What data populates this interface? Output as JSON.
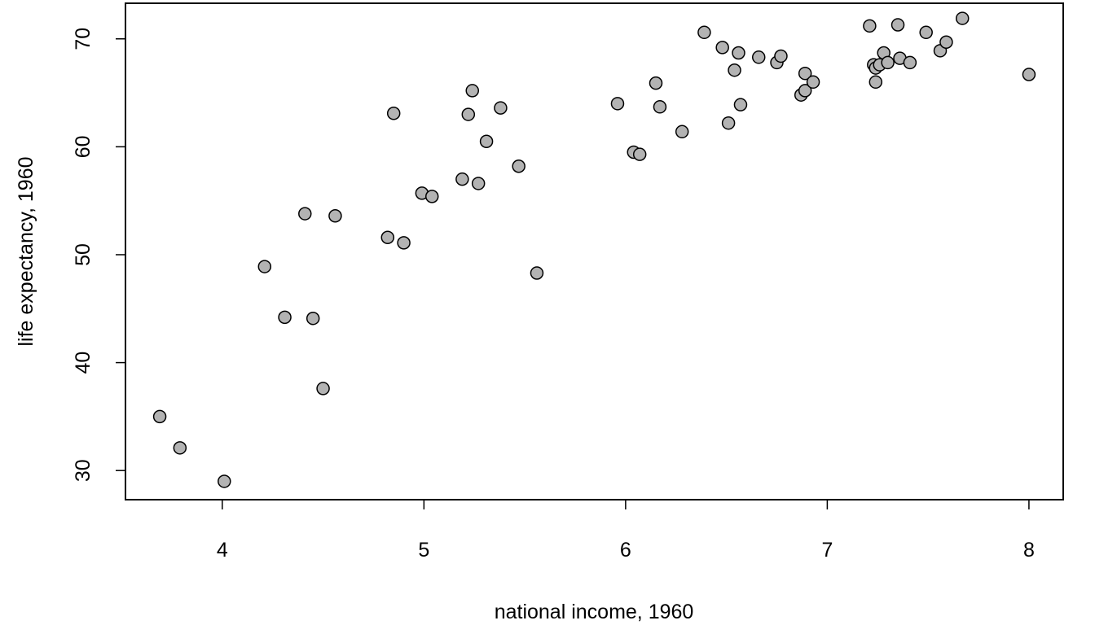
{
  "chart_data": {
    "type": "scatter",
    "title": "",
    "xlabel": "national income, 1960",
    "ylabel": "life expectancy, 1960",
    "xlim": [
      3.52,
      8.17
    ],
    "ylim": [
      27.3,
      73.3
    ],
    "xticks": [
      4,
      5,
      6,
      7,
      8
    ],
    "yticks": [
      30,
      40,
      50,
      60,
      70
    ],
    "grid": false,
    "legend": "none",
    "colors": {
      "point_fill": "#b3b3b3",
      "point_stroke": "#000000",
      "frame": "#000000"
    },
    "points": [
      {
        "x": 3.69,
        "y": 35.0
      },
      {
        "x": 3.79,
        "y": 32.1
      },
      {
        "x": 4.01,
        "y": 29.0
      },
      {
        "x": 4.21,
        "y": 48.9
      },
      {
        "x": 4.31,
        "y": 44.2
      },
      {
        "x": 4.41,
        "y": 53.8
      },
      {
        "x": 4.45,
        "y": 44.1
      },
      {
        "x": 4.5,
        "y": 37.6
      },
      {
        "x": 4.56,
        "y": 53.6
      },
      {
        "x": 4.82,
        "y": 51.6
      },
      {
        "x": 4.85,
        "y": 63.1
      },
      {
        "x": 4.9,
        "y": 51.1
      },
      {
        "x": 4.99,
        "y": 55.7
      },
      {
        "x": 5.04,
        "y": 55.4
      },
      {
        "x": 5.19,
        "y": 57.0
      },
      {
        "x": 5.22,
        "y": 63.0
      },
      {
        "x": 5.24,
        "y": 65.2
      },
      {
        "x": 5.27,
        "y": 56.6
      },
      {
        "x": 5.31,
        "y": 60.5
      },
      {
        "x": 5.38,
        "y": 63.6
      },
      {
        "x": 5.47,
        "y": 58.2
      },
      {
        "x": 5.56,
        "y": 48.3
      },
      {
        "x": 5.96,
        "y": 64.0
      },
      {
        "x": 6.04,
        "y": 59.5
      },
      {
        "x": 6.07,
        "y": 59.3
      },
      {
        "x": 6.15,
        "y": 65.9
      },
      {
        "x": 6.17,
        "y": 63.7
      },
      {
        "x": 6.28,
        "y": 61.4
      },
      {
        "x": 6.39,
        "y": 70.6
      },
      {
        "x": 6.48,
        "y": 69.2
      },
      {
        "x": 6.51,
        "y": 62.2
      },
      {
        "x": 6.54,
        "y": 67.1
      },
      {
        "x": 6.56,
        "y": 68.7
      },
      {
        "x": 6.57,
        "y": 63.9
      },
      {
        "x": 6.66,
        "y": 68.3
      },
      {
        "x": 6.75,
        "y": 67.8
      },
      {
        "x": 6.77,
        "y": 68.4
      },
      {
        "x": 6.87,
        "y": 64.8
      },
      {
        "x": 6.89,
        "y": 66.8
      },
      {
        "x": 6.89,
        "y": 65.2
      },
      {
        "x": 6.93,
        "y": 66.0
      },
      {
        "x": 7.21,
        "y": 71.2
      },
      {
        "x": 7.23,
        "y": 67.6
      },
      {
        "x": 7.24,
        "y": 67.3
      },
      {
        "x": 7.24,
        "y": 66.0
      },
      {
        "x": 7.26,
        "y": 67.6
      },
      {
        "x": 7.28,
        "y": 68.7
      },
      {
        "x": 7.3,
        "y": 67.8
      },
      {
        "x": 7.35,
        "y": 71.3
      },
      {
        "x": 7.36,
        "y": 68.2
      },
      {
        "x": 7.41,
        "y": 67.8
      },
      {
        "x": 7.49,
        "y": 70.6
      },
      {
        "x": 7.56,
        "y": 68.9
      },
      {
        "x": 7.59,
        "y": 69.7
      },
      {
        "x": 7.67,
        "y": 71.9
      },
      {
        "x": 8.0,
        "y": 66.7
      }
    ]
  }
}
